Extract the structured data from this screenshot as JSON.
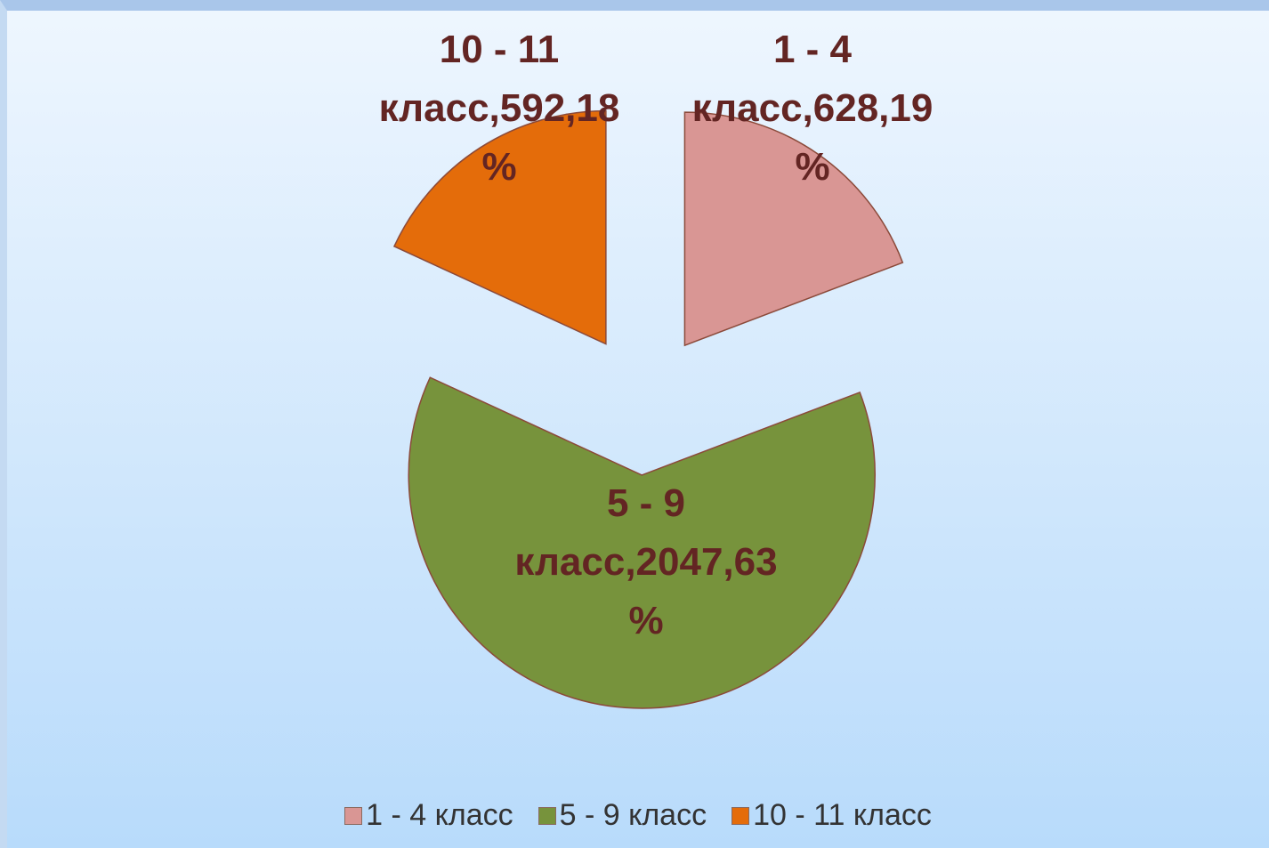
{
  "chart_data": {
    "type": "pie",
    "categories": [
      "1 - 4 класс",
      "5 - 9 класс",
      "10 - 11 класс"
    ],
    "values": [
      628,
      2047,
      592
    ],
    "value_labels": [
      "1 - 4 класс,628,19 %",
      "5 - 9 класс,2047,63%",
      "10 - 11 класс,592,18 %"
    ],
    "colors": [
      "#d99694",
      "#77933c",
      "#e46c0a"
    ],
    "legend": "bottom"
  }
}
